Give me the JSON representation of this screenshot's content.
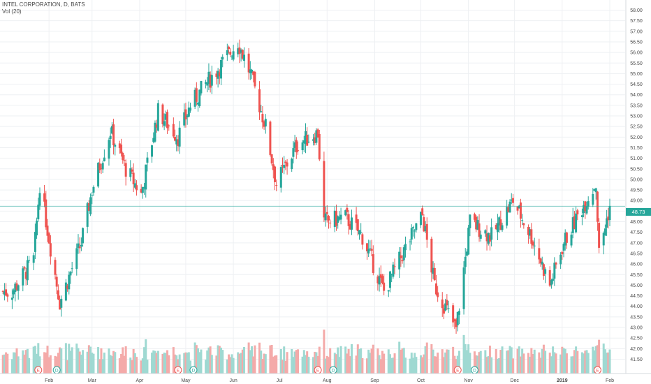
{
  "legend": {
    "symbol": "INTEL CORPORATION, D, BATS",
    "volume": "Vol (20)"
  },
  "colors": {
    "up": "#26a69a",
    "down": "#ef5350",
    "up_volume": "#9fd9d2",
    "down_volume": "#f4aaa9",
    "grid": "#eef0f3",
    "last_price_line": "#26a69a"
  },
  "chart_data": {
    "type": "candlestick",
    "title": "INTEL CORPORATION, D, BATS",
    "yaxis_ticks": [
      "41.50",
      "42.00",
      "42.50",
      "43.00",
      "43.50",
      "44.00",
      "44.50",
      "45.00",
      "45.50",
      "46.00",
      "46.50",
      "47.00",
      "47.50",
      "48.00",
      "48.50",
      "49.00",
      "49.50",
      "50.00",
      "50.50",
      "51.00",
      "51.50",
      "52.00",
      "52.50",
      "53.00",
      "53.50",
      "54.00",
      "54.50",
      "55.00",
      "55.50",
      "56.00",
      "56.50",
      "57.00",
      "57.50",
      "58.00"
    ],
    "ylim": [
      41.2,
      58.2
    ],
    "xaxis_ticks": [
      "Feb",
      "Mar",
      "Apr",
      "May",
      "Jun",
      "Jul",
      "Aug",
      "Sep",
      "Oct",
      "Nov",
      "Dec",
      "2019",
      "Feb"
    ],
    "grid": true,
    "last_price": "48.73",
    "events": [
      "E",
      "D",
      "E",
      "D",
      "E",
      "D",
      "E",
      "D",
      "E"
    ],
    "close_checkpoints": [
      {
        "date": "2018-01-08",
        "close": 44.7
      },
      {
        "date": "2018-01-22",
        "close": 46.2
      },
      {
        "date": "2018-01-26",
        "close": 49.8
      },
      {
        "date": "2018-02-08",
        "close": 44.2
      },
      {
        "date": "2018-02-22",
        "close": 47.0
      },
      {
        "date": "2018-03-01",
        "close": 49.5
      },
      {
        "date": "2018-03-13",
        "close": 52.3
      },
      {
        "date": "2018-03-23",
        "close": 50.5
      },
      {
        "date": "2018-04-02",
        "close": 49.3
      },
      {
        "date": "2018-04-13",
        "close": 53.2
      },
      {
        "date": "2018-04-26",
        "close": 52.0
      },
      {
        "date": "2018-05-04",
        "close": 53.5
      },
      {
        "date": "2018-05-14",
        "close": 54.5
      },
      {
        "date": "2018-05-25",
        "close": 55.5
      },
      {
        "date": "2018-06-04",
        "close": 56.5
      },
      {
        "date": "2018-06-12",
        "close": 55.0
      },
      {
        "date": "2018-06-22",
        "close": 52.5
      },
      {
        "date": "2018-06-29",
        "close": 49.8
      },
      {
        "date": "2018-07-13",
        "close": 51.7
      },
      {
        "date": "2018-07-26",
        "close": 52.2
      },
      {
        "date": "2018-07-30",
        "close": 48.0
      },
      {
        "date": "2018-08-13",
        "close": 48.2
      },
      {
        "date": "2018-08-24",
        "close": 47.3
      },
      {
        "date": "2018-09-07",
        "close": 44.7
      },
      {
        "date": "2018-09-20",
        "close": 46.6
      },
      {
        "date": "2018-10-02",
        "close": 48.3
      },
      {
        "date": "2018-10-10",
        "close": 45.0
      },
      {
        "date": "2018-10-24",
        "close": 42.9
      },
      {
        "date": "2018-11-02",
        "close": 48.0
      },
      {
        "date": "2018-11-16",
        "close": 47.3
      },
      {
        "date": "2018-11-30",
        "close": 49.0
      },
      {
        "date": "2018-12-12",
        "close": 47.3
      },
      {
        "date": "2018-12-24",
        "close": 45.0
      },
      {
        "date": "2019-01-02",
        "close": 47.0
      },
      {
        "date": "2019-01-15",
        "close": 48.8
      },
      {
        "date": "2019-01-23",
        "close": 49.8
      },
      {
        "date": "2019-01-25",
        "close": 46.5
      },
      {
        "date": "2019-02-01",
        "close": 48.73
      }
    ],
    "volume_scale_max": 100
  }
}
